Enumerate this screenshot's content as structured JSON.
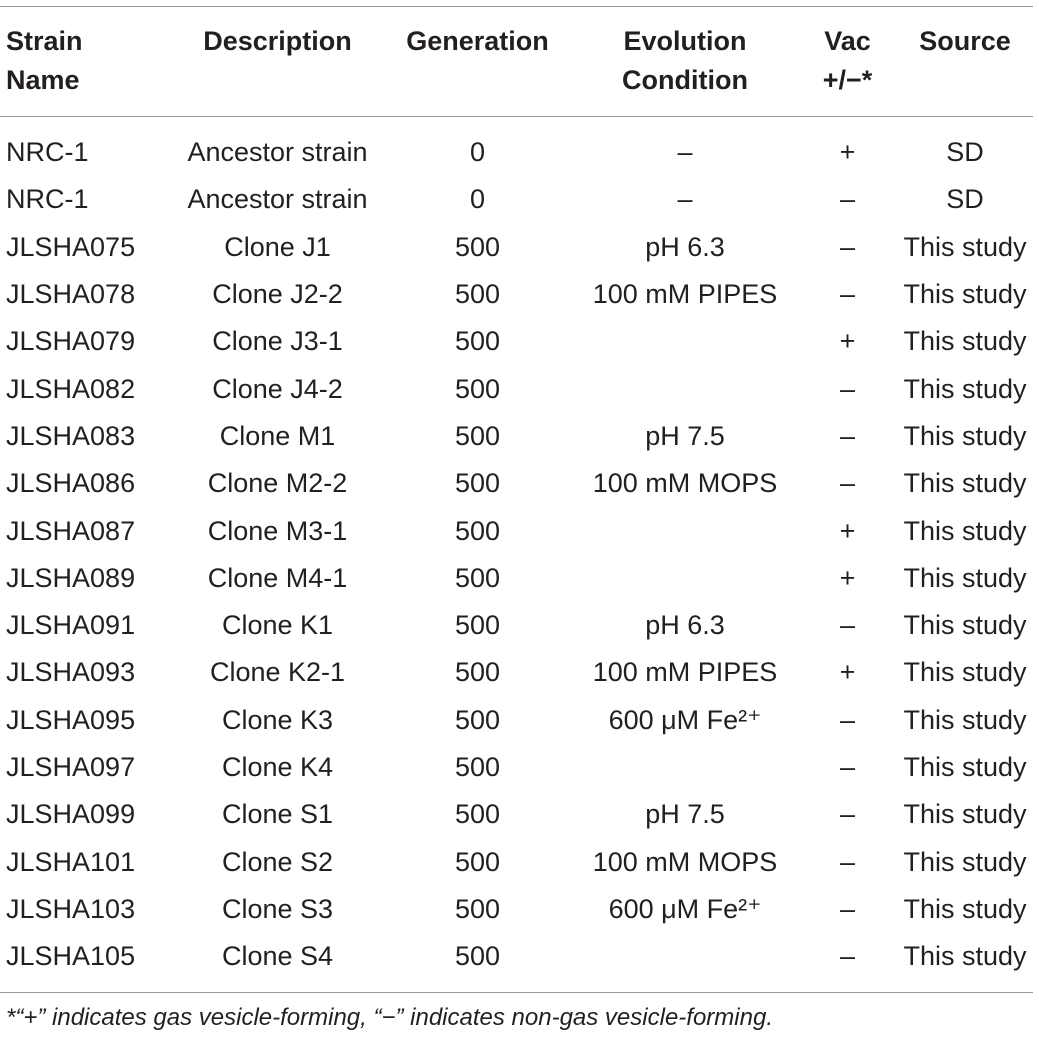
{
  "table": {
    "headers": {
      "strain_name_1": "Strain",
      "strain_name_2": "Name",
      "description": "Description",
      "generation": "Generation",
      "evolution_1": "Evolution",
      "evolution_2": "Condition",
      "vac_1": "Vac",
      "vac_2": "+/−*",
      "source": "Source"
    },
    "rows": [
      {
        "strain": "NRC-1",
        "description": "Ancestor strain",
        "generation": "0",
        "condition": "–",
        "vac": "+",
        "source": "SD"
      },
      {
        "strain": "NRC-1",
        "description": "Ancestor strain",
        "generation": "0",
        "condition": "–",
        "vac": "–",
        "source": "SD"
      },
      {
        "strain": "JLSHA075",
        "description": "Clone J1",
        "generation": "500",
        "condition": "pH 6.3",
        "vac": "–",
        "source": "This study"
      },
      {
        "strain": "JLSHA078",
        "description": "Clone J2-2",
        "generation": "500",
        "condition": "100 mM PIPES",
        "vac": "–",
        "source": "This study"
      },
      {
        "strain": "JLSHA079",
        "description": "Clone J3-1",
        "generation": "500",
        "condition": "",
        "vac": "+",
        "source": "This study"
      },
      {
        "strain": "JLSHA082",
        "description": "Clone J4-2",
        "generation": "500",
        "condition": "",
        "vac": "–",
        "source": "This study"
      },
      {
        "strain": "JLSHA083",
        "description": "Clone M1",
        "generation": "500",
        "condition": "pH 7.5",
        "vac": "–",
        "source": "This study"
      },
      {
        "strain": "JLSHA086",
        "description": "Clone M2-2",
        "generation": "500",
        "condition": "100 mM MOPS",
        "vac": "–",
        "source": "This study"
      },
      {
        "strain": "JLSHA087",
        "description": "Clone M3-1",
        "generation": "500",
        "condition": "",
        "vac": "+",
        "source": "This study"
      },
      {
        "strain": "JLSHA089",
        "description": "Clone M4-1",
        "generation": "500",
        "condition": "",
        "vac": "+",
        "source": "This study"
      },
      {
        "strain": "JLSHA091",
        "description": "Clone K1",
        "generation": "500",
        "condition": "pH 6.3",
        "vac": "–",
        "source": "This study"
      },
      {
        "strain": "JLSHA093",
        "description": "Clone K2-1",
        "generation": "500",
        "condition": "100 mM PIPES",
        "vac": "+",
        "source": "This study"
      },
      {
        "strain": "JLSHA095",
        "description": "Clone K3",
        "generation": "500",
        "condition": "600 μM Fe²⁺",
        "vac": "–",
        "source": "This study"
      },
      {
        "strain": "JLSHA097",
        "description": "Clone K4",
        "generation": "500",
        "condition": "",
        "vac": "–",
        "source": "This study"
      },
      {
        "strain": "JLSHA099",
        "description": "Clone S1",
        "generation": "500",
        "condition": "pH 7.5",
        "vac": "–",
        "source": "This study"
      },
      {
        "strain": "JLSHA101",
        "description": "Clone S2",
        "generation": "500",
        "condition": "100 mM MOPS",
        "vac": "–",
        "source": "This study"
      },
      {
        "strain": "JLSHA103",
        "description": "Clone S3",
        "generation": "500",
        "condition": "600 μM Fe²⁺",
        "vac": "–",
        "source": "This study"
      },
      {
        "strain": "JLSHA105",
        "description": "Clone S4",
        "generation": "500",
        "condition": "",
        "vac": "–",
        "source": "This study"
      }
    ]
  },
  "footnote": "*“+” indicates gas vesicle-forming, “−” indicates non-gas vesicle-forming."
}
